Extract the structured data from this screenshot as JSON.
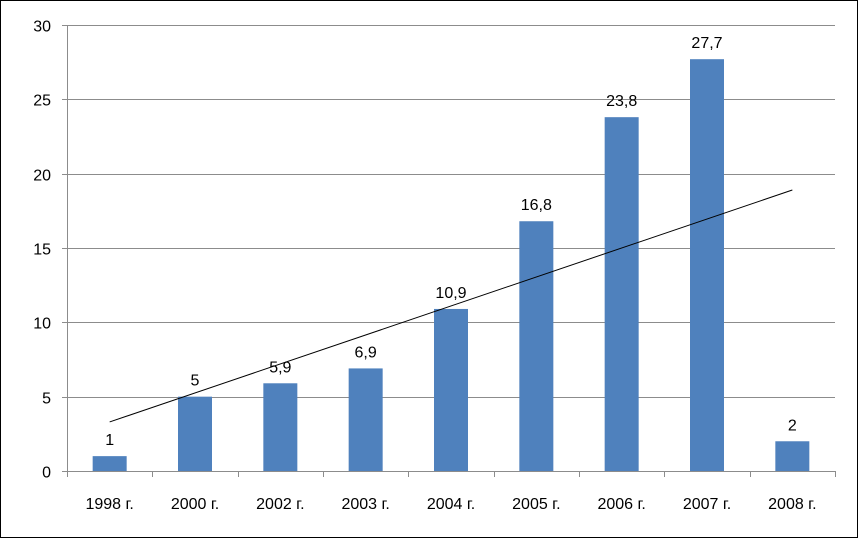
{
  "chart_data": {
    "type": "bar",
    "categories": [
      "1998 г.",
      "2000 г.",
      "2002 г.",
      "2003 г.",
      "2004 г.",
      "2005 г.",
      "2006 г.",
      "2007 г.",
      "2008 г."
    ],
    "values": [
      1,
      5,
      5.9,
      6.9,
      10.9,
      16.8,
      23.8,
      27.7,
      2
    ],
    "data_labels": [
      "1",
      "5",
      "5,9",
      "6,9",
      "10,9",
      "16,8",
      "23,8",
      "27,7",
      "2"
    ],
    "ylim": [
      0,
      30
    ],
    "yticks": [
      0,
      5,
      10,
      15,
      20,
      25,
      30
    ],
    "ytick_labels": [
      "0",
      "5",
      "10",
      "15",
      "20",
      "25",
      "30"
    ],
    "grid": "horizontal",
    "legend": "none",
    "trendline": {
      "type": "linear",
      "start_value": 3.3,
      "end_value": 18.9
    },
    "colors": {
      "bar": "#4f81bd",
      "grid": "#8c8c8c",
      "axis": "#8c8c8c",
      "trendline": "#000000",
      "text": "#000000"
    }
  }
}
